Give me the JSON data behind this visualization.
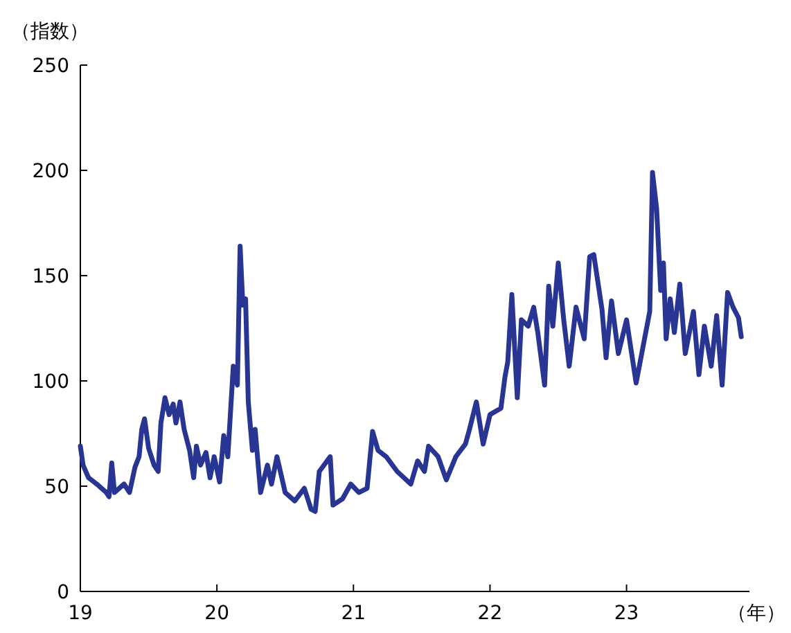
{
  "chart_data": {
    "type": "line",
    "ylabel": "（指数）",
    "xlabel": "（年）",
    "xlim": [
      19,
      23.9
    ],
    "xticks": [
      19,
      20,
      21,
      22,
      23
    ],
    "ylim": [
      0,
      250
    ],
    "yticks": [
      0,
      50,
      100,
      150,
      200,
      250
    ],
    "grid": false,
    "marker": "none",
    "line_style": "solid",
    "x": [
      19.0,
      19.02,
      19.06,
      19.12,
      19.19,
      19.21,
      19.23,
      19.25,
      19.32,
      19.36,
      19.4,
      19.43,
      19.45,
      19.47,
      19.5,
      19.54,
      19.57,
      19.59,
      19.62,
      19.65,
      19.68,
      19.7,
      19.73,
      19.76,
      19.8,
      19.83,
      19.85,
      19.88,
      19.92,
      19.95,
      19.98,
      20.02,
      20.05,
      20.08,
      20.12,
      20.15,
      20.17,
      20.19,
      20.21,
      20.23,
      20.26,
      20.28,
      20.32,
      20.37,
      20.4,
      20.44,
      20.5,
      20.57,
      20.64,
      20.69,
      20.72,
      20.75,
      20.83,
      20.85,
      20.92,
      20.98,
      21.04,
      21.1,
      21.14,
      21.18,
      21.24,
      21.32,
      21.42,
      21.47,
      21.52,
      21.55,
      21.62,
      21.68,
      21.75,
      21.82,
      21.85,
      21.9,
      21.95,
      22.0,
      22.08,
      22.11,
      22.13,
      22.16,
      22.2,
      22.23,
      22.28,
      22.32,
      22.35,
      22.4,
      22.43,
      22.46,
      22.5,
      22.54,
      22.58,
      22.63,
      22.69,
      22.73,
      22.76,
      22.82,
      22.85,
      22.89,
      22.94,
      23.0,
      23.07,
      23.12,
      23.17,
      23.19,
      23.22,
      23.25,
      23.27,
      23.29,
      23.32,
      23.35,
      23.39,
      23.43,
      23.49,
      23.53,
      23.57,
      23.62,
      23.66,
      23.7,
      23.74,
      23.78,
      23.82,
      23.84
    ],
    "series": [
      {
        "color": "#283593",
        "values": [
          69,
          60,
          54,
          51,
          47,
          45,
          61,
          47,
          51,
          47,
          59,
          64,
          77,
          82,
          68,
          60,
          57,
          80,
          92,
          84,
          89,
          80,
          90,
          77,
          67,
          54,
          69,
          60,
          66,
          54,
          64,
          52,
          74,
          64,
          107,
          98,
          164,
          136,
          139,
          90,
          67,
          77,
          47,
          60,
          51,
          64,
          47,
          43,
          49,
          39,
          38,
          57,
          64,
          41,
          44,
          51,
          47,
          49,
          76,
          67,
          64,
          57,
          51,
          62,
          57,
          69,
          64,
          53,
          64,
          70,
          77,
          90,
          70,
          84,
          87,
          102,
          109,
          141,
          92,
          129,
          126,
          135,
          123,
          98,
          145,
          126,
          156,
          129,
          107,
          135,
          120,
          159,
          160,
          134,
          111,
          138,
          113,
          129,
          99,
          116,
          133,
          199,
          182,
          143,
          156,
          120,
          139,
          123,
          146,
          113,
          133,
          103,
          126,
          107,
          131,
          98,
          142,
          135,
          130,
          121
        ]
      }
    ]
  }
}
